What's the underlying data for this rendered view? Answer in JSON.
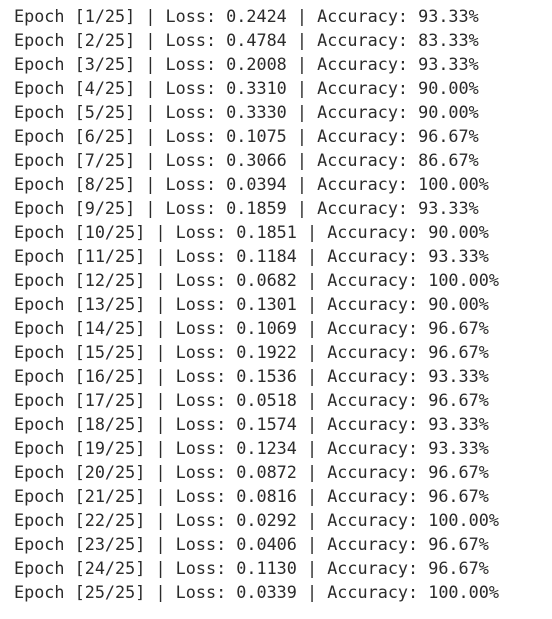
{
  "lines": [
    "Epoch [1/25] | Loss: 0.2424 | Accuracy: 93.33%",
    "Epoch [2/25] | Loss: 0.4784 | Accuracy: 83.33%",
    "Epoch [3/25] | Loss: 0.2008 | Accuracy: 93.33%",
    "Epoch [4/25] | Loss: 0.3310 | Accuracy: 90.00%",
    "Epoch [5/25] | Loss: 0.3330 | Accuracy: 90.00%",
    "Epoch [6/25] | Loss: 0.1075 | Accuracy: 96.67%",
    "Epoch [7/25] | Loss: 0.3066 | Accuracy: 86.67%",
    "Epoch [8/25] | Loss: 0.0394 | Accuracy: 100.00%",
    "Epoch [9/25] | Loss: 0.1859 | Accuracy: 93.33%",
    "Epoch [10/25] | Loss: 0.1851 | Accuracy: 90.00%",
    "Epoch [11/25] | Loss: 0.1184 | Accuracy: 93.33%",
    "Epoch [12/25] | Loss: 0.0682 | Accuracy: 100.00%",
    "Epoch [13/25] | Loss: 0.1301 | Accuracy: 90.00%",
    "Epoch [14/25] | Loss: 0.1069 | Accuracy: 96.67%",
    "Epoch [15/25] | Loss: 0.1922 | Accuracy: 96.67%",
    "Epoch [16/25] | Loss: 0.1536 | Accuracy: 93.33%",
    "Epoch [17/25] | Loss: 0.0518 | Accuracy: 96.67%",
    "Epoch [18/25] | Loss: 0.1574 | Accuracy: 93.33%",
    "Epoch [19/25] | Loss: 0.1234 | Accuracy: 93.33%",
    "Epoch [20/25] | Loss: 0.0872 | Accuracy: 96.67%",
    "Epoch [21/25] | Loss: 0.0816 | Accuracy: 96.67%",
    "Epoch [22/25] | Loss: 0.0292 | Accuracy: 100.00%",
    "Epoch [23/25] | Loss: 0.0406 | Accuracy: 96.67%",
    "Epoch [24/25] | Loss: 0.1130 | Accuracy: 96.67%",
    "Epoch [25/25] | Loss: 0.0339 | Accuracy: 100.00%"
  ]
}
